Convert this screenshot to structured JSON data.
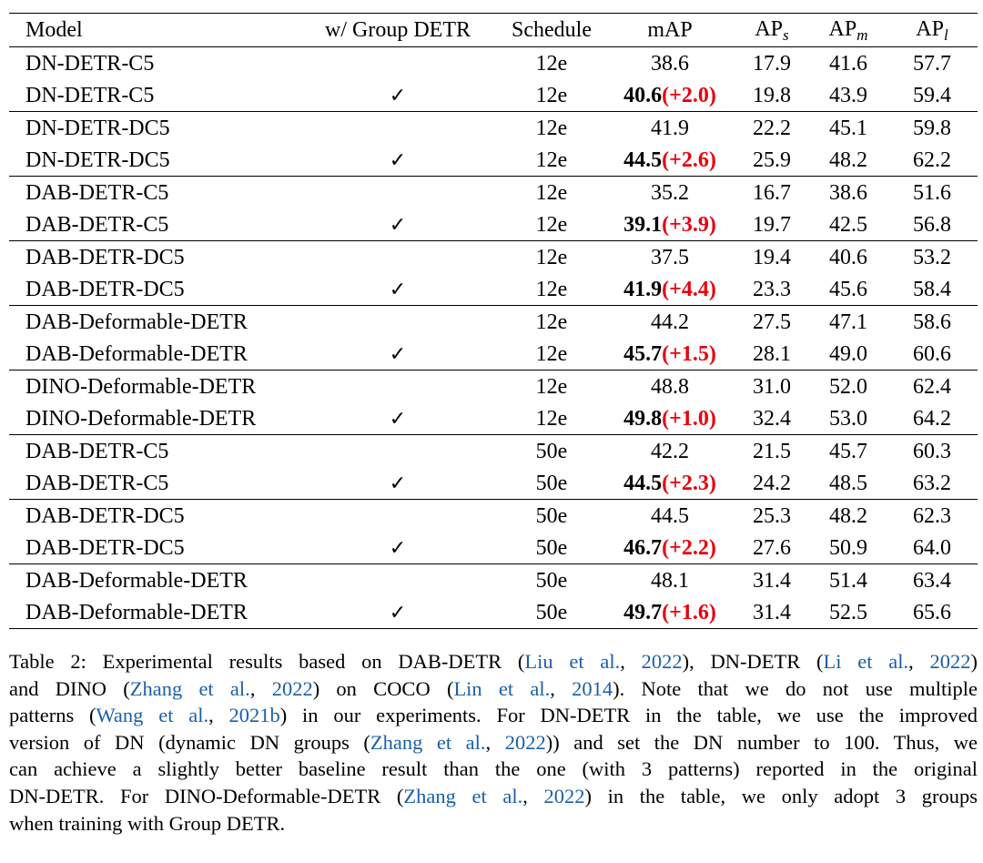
{
  "table": {
    "headers": {
      "model": "Model",
      "group_detr": "w/ Group DETR",
      "schedule": "Schedule",
      "map": "mAP",
      "aps_base": "AP",
      "aps_sub": "s",
      "apm_base": "AP",
      "apm_sub": "m",
      "apl_base": "AP",
      "apl_sub": "l"
    },
    "check_symbol": "✓",
    "rows": [
      {
        "model": "DN-DETR-C5",
        "group": "",
        "schedule": "12e",
        "map": "38.6",
        "gain": "",
        "aps": "17.9",
        "apm": "41.6",
        "apl": "57.7"
      },
      {
        "model": "DN-DETR-C5",
        "group": "✓",
        "schedule": "12e",
        "map": "40.6",
        "gain": "(+2.0)",
        "aps": "19.8",
        "apm": "43.9",
        "apl": "59.4"
      },
      {
        "model": "DN-DETR-DC5",
        "group": "",
        "schedule": "12e",
        "map": "41.9",
        "gain": "",
        "aps": "22.2",
        "apm": "45.1",
        "apl": "59.8"
      },
      {
        "model": "DN-DETR-DC5",
        "group": "✓",
        "schedule": "12e",
        "map": "44.5",
        "gain": "(+2.6)",
        "aps": "25.9",
        "apm": "48.2",
        "apl": "62.2"
      },
      {
        "model": "DAB-DETR-C5",
        "group": "",
        "schedule": "12e",
        "map": "35.2",
        "gain": "",
        "aps": "16.7",
        "apm": "38.6",
        "apl": "51.6"
      },
      {
        "model": "DAB-DETR-C5",
        "group": "✓",
        "schedule": "12e",
        "map": "39.1",
        "gain": "(+3.9)",
        "aps": "19.7",
        "apm": "42.5",
        "apl": "56.8"
      },
      {
        "model": "DAB-DETR-DC5",
        "group": "",
        "schedule": "12e",
        "map": "37.5",
        "gain": "",
        "aps": "19.4",
        "apm": "40.6",
        "apl": "53.2"
      },
      {
        "model": "DAB-DETR-DC5",
        "group": "✓",
        "schedule": "12e",
        "map": "41.9",
        "gain": "(+4.4)",
        "aps": "23.3",
        "apm": "45.6",
        "apl": "58.4"
      },
      {
        "model": "DAB-Deformable-DETR",
        "group": "",
        "schedule": "12e",
        "map": "44.2",
        "gain": "",
        "aps": "27.5",
        "apm": "47.1",
        "apl": "58.6"
      },
      {
        "model": "DAB-Deformable-DETR",
        "group": "✓",
        "schedule": "12e",
        "map": "45.7",
        "gain": "(+1.5)",
        "aps": "28.1",
        "apm": "49.0",
        "apl": "60.6"
      },
      {
        "model": "DINO-Deformable-DETR",
        "group": "",
        "schedule": "12e",
        "map": "48.8",
        "gain": "",
        "aps": "31.0",
        "apm": "52.0",
        "apl": "62.4"
      },
      {
        "model": "DINO-Deformable-DETR",
        "group": "✓",
        "schedule": "12e",
        "map": "49.8",
        "gain": "(+1.0)",
        "aps": "32.4",
        "apm": "53.0",
        "apl": "64.2"
      },
      {
        "model": "DAB-DETR-C5",
        "group": "",
        "schedule": "50e",
        "map": "42.2",
        "gain": "",
        "aps": "21.5",
        "apm": "45.7",
        "apl": "60.3"
      },
      {
        "model": "DAB-DETR-C5",
        "group": "✓",
        "schedule": "50e",
        "map": "44.5",
        "gain": "(+2.3)",
        "aps": "24.2",
        "apm": "48.5",
        "apl": "63.2"
      },
      {
        "model": "DAB-DETR-DC5",
        "group": "",
        "schedule": "50e",
        "map": "44.5",
        "gain": "",
        "aps": "25.3",
        "apm": "48.2",
        "apl": "62.3"
      },
      {
        "model": "DAB-DETR-DC5",
        "group": "✓",
        "schedule": "50e",
        "map": "46.7",
        "gain": "(+2.2)",
        "aps": "27.6",
        "apm": "50.9",
        "apl": "64.0"
      },
      {
        "model": "DAB-Deformable-DETR",
        "group": "",
        "schedule": "50e",
        "map": "48.1",
        "gain": "",
        "aps": "31.4",
        "apm": "51.4",
        "apl": "63.4"
      },
      {
        "model": "DAB-Deformable-DETR",
        "group": "✓",
        "schedule": "50e",
        "map": "49.7",
        "gain": "(+1.6)",
        "aps": "31.4",
        "apm": "52.5",
        "apl": "65.6"
      }
    ]
  },
  "caption": {
    "lines": [
      [
        {
          "t": "Table 2: Experimental results based on DAB-DETR ("
        },
        {
          "t": "Liu et al.",
          "c": 1
        },
        {
          "t": ", "
        },
        {
          "t": "2022",
          "c": 1
        },
        {
          "t": "), DN-DETR ("
        },
        {
          "t": "Li et al.",
          "c": 1
        },
        {
          "t": ", "
        },
        {
          "t": "2022",
          "c": 1
        },
        {
          "t": ")"
        }
      ],
      [
        {
          "t": "and DINO ("
        },
        {
          "t": "Zhang et al.",
          "c": 1
        },
        {
          "t": ", "
        },
        {
          "t": "2022",
          "c": 1
        },
        {
          "t": ") on COCO ("
        },
        {
          "t": "Lin et al.",
          "c": 1
        },
        {
          "t": ", "
        },
        {
          "t": "2014",
          "c": 1
        },
        {
          "t": ").  Note that we do not use multiple"
        }
      ],
      [
        {
          "t": "patterns ("
        },
        {
          "t": "Wang et al.",
          "c": 1
        },
        {
          "t": ", "
        },
        {
          "t": "2021b",
          "c": 1
        },
        {
          "t": ") in our experiments. For DN-DETR in the table, we use the improved"
        }
      ],
      [
        {
          "t": "version of DN (dynamic DN groups ("
        },
        {
          "t": "Zhang et al.",
          "c": 1
        },
        {
          "t": ", "
        },
        {
          "t": "2022",
          "c": 1
        },
        {
          "t": ")) and set the DN number to 100. Thus, we"
        }
      ],
      [
        {
          "t": "can achieve a slightly better baseline result than the one (with 3 patterns) reported in the original"
        }
      ],
      [
        {
          "t": "DN-DETR. For DINO-Deformable-DETR ("
        },
        {
          "t": "Zhang et al.",
          "c": 1
        },
        {
          "t": ", "
        },
        {
          "t": "2022",
          "c": 1
        },
        {
          "t": ") in the table, we only adopt 3 groups"
        }
      ],
      [
        {
          "t": "when training with Group DETR."
        }
      ]
    ]
  }
}
